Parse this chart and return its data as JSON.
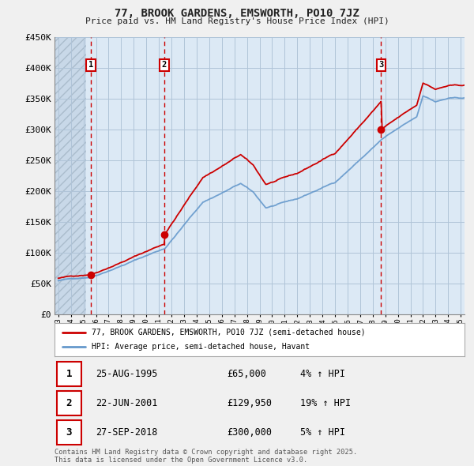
{
  "title": "77, BROOK GARDENS, EMSWORTH, PO10 7JZ",
  "subtitle": "Price paid vs. HM Land Registry's House Price Index (HPI)",
  "legend_line1": "77, BROOK GARDENS, EMSWORTH, PO10 7JZ (semi-detached house)",
  "legend_line2": "HPI: Average price, semi-detached house, Havant",
  "sale1_date": "25-AUG-1995",
  "sale1_price": 65000,
  "sale1_hpi": "4% ↑ HPI",
  "sale2_date": "22-JUN-2001",
  "sale2_price": 129950,
  "sale2_hpi": "19% ↑ HPI",
  "sale3_date": "27-SEP-2018",
  "sale3_price": 300000,
  "sale3_hpi": "5% ↑ HPI",
  "footer": "Contains HM Land Registry data © Crown copyright and database right 2025.\nThis data is licensed under the Open Government Licence v3.0.",
  "bg_color": "#f0f0f0",
  "plot_bg_color": "#dce9f5",
  "red_color": "#cc0000",
  "blue_color": "#6699cc",
  "hatch_color": "#c0c8d0",
  "ylim": [
    0,
    450000
  ],
  "yticks": [
    0,
    50000,
    100000,
    150000,
    200000,
    250000,
    300000,
    350000,
    400000,
    450000
  ],
  "xlim_start": 1992.7,
  "xlim_end": 2025.3
}
